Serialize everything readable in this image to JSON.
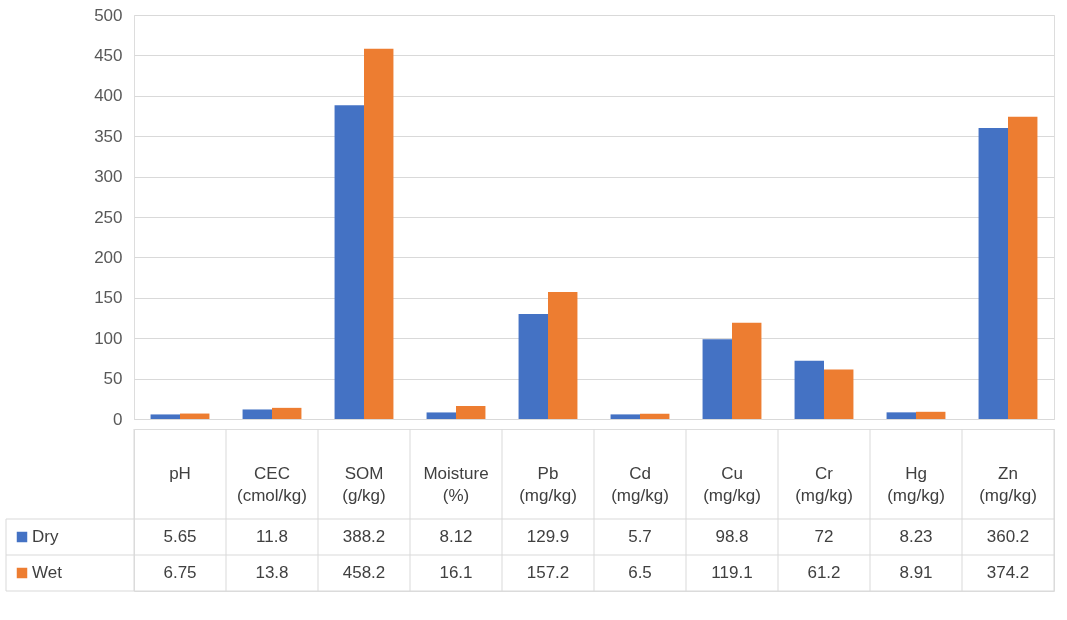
{
  "chart_data": {
    "type": "bar",
    "categories": [
      "pH",
      "CEC (cmol/kg)",
      "SOM (g/kg)",
      "Moisture (%)",
      "Pb (mg/kg)",
      "Cd (mg/kg)",
      "Cu (mg/kg)",
      "Cr (mg/kg)",
      "Hg (mg/kg)",
      "Zn (mg/kg)"
    ],
    "series": [
      {
        "name": "Dry",
        "color": "#4472c4",
        "values": [
          5.65,
          11.8,
          388.2,
          8.12,
          129.9,
          5.7,
          98.8,
          72,
          8.23,
          360.2
        ]
      },
      {
        "name": "Wet",
        "color": "#ed7d31",
        "values": [
          6.75,
          13.8,
          458.2,
          16.1,
          157.2,
          6.5,
          119.1,
          61.2,
          8.91,
          374.2
        ]
      }
    ],
    "ylim": [
      0,
      500
    ],
    "yticks": [
      0,
      50,
      100,
      150,
      200,
      250,
      300,
      350,
      400,
      450,
      500
    ],
    "grid": "y",
    "legend": "bottom",
    "data_labels": true
  }
}
